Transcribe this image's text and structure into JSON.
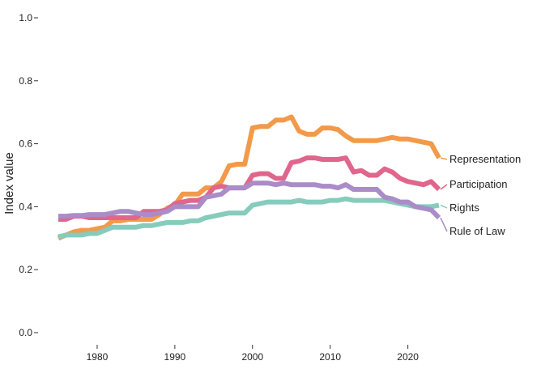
{
  "chart_data": {
    "type": "line",
    "title": "",
    "xlabel": "",
    "ylabel": "Index value",
    "xlim": [
      1975,
      2024
    ],
    "ylim": [
      0,
      1
    ],
    "x_ticks": [
      1980,
      1990,
      2000,
      2010,
      2020
    ],
    "y_ticks": [
      0.0,
      0.2,
      0.4,
      0.6,
      0.8,
      1.0
    ],
    "y_tick_labels": [
      "0.0",
      "0.2",
      "0.4",
      "0.6",
      "0.8",
      "1.0"
    ],
    "grid": false,
    "legend": "direct labels at line ends",
    "x": [
      1975,
      1976,
      1977,
      1978,
      1979,
      1980,
      1981,
      1982,
      1983,
      1984,
      1985,
      1986,
      1987,
      1988,
      1989,
      1990,
      1991,
      1992,
      1993,
      1994,
      1995,
      1996,
      1997,
      1998,
      1999,
      2000,
      2001,
      2002,
      2003,
      2004,
      2005,
      2006,
      2007,
      2008,
      2009,
      2010,
      2011,
      2012,
      2013,
      2014,
      2015,
      2016,
      2017,
      2018,
      2019,
      2020,
      2021,
      2022,
      2023,
      2024
    ],
    "series": [
      {
        "name": "Representation",
        "color": "#F29A4A",
        "values": [
          0.3,
          0.31,
          0.32,
          0.325,
          0.325,
          0.33,
          0.335,
          0.355,
          0.355,
          0.36,
          0.36,
          0.36,
          0.36,
          0.375,
          0.395,
          0.405,
          0.44,
          0.44,
          0.44,
          0.46,
          0.46,
          0.48,
          0.53,
          0.535,
          0.535,
          0.65,
          0.655,
          0.655,
          0.675,
          0.675,
          0.685,
          0.64,
          0.63,
          0.63,
          0.65,
          0.65,
          0.645,
          0.625,
          0.61,
          0.61,
          0.61,
          0.61,
          0.615,
          0.62,
          0.615,
          0.615,
          0.61,
          0.605,
          0.6,
          0.555
        ]
      },
      {
        "name": "Participation",
        "color": "#E0668C",
        "values": [
          0.36,
          0.36,
          0.37,
          0.37,
          0.365,
          0.365,
          0.365,
          0.365,
          0.365,
          0.365,
          0.365,
          0.385,
          0.385,
          0.385,
          0.39,
          0.41,
          0.415,
          0.42,
          0.42,
          0.43,
          0.46,
          0.465,
          0.46,
          0.46,
          0.46,
          0.5,
          0.505,
          0.505,
          0.49,
          0.49,
          0.54,
          0.545,
          0.555,
          0.555,
          0.55,
          0.55,
          0.55,
          0.555,
          0.51,
          0.515,
          0.5,
          0.5,
          0.52,
          0.51,
          0.49,
          0.48,
          0.475,
          0.47,
          0.48,
          0.455
        ]
      },
      {
        "name": "Rights",
        "color": "#86CBBC",
        "values": [
          0.305,
          0.31,
          0.31,
          0.31,
          0.315,
          0.315,
          0.325,
          0.335,
          0.335,
          0.335,
          0.335,
          0.34,
          0.34,
          0.345,
          0.35,
          0.35,
          0.35,
          0.355,
          0.355,
          0.365,
          0.37,
          0.375,
          0.38,
          0.38,
          0.38,
          0.405,
          0.41,
          0.415,
          0.415,
          0.415,
          0.415,
          0.42,
          0.415,
          0.415,
          0.415,
          0.42,
          0.42,
          0.425,
          0.42,
          0.42,
          0.42,
          0.42,
          0.42,
          0.415,
          0.41,
          0.405,
          0.4,
          0.4,
          0.4,
          0.405
        ]
      },
      {
        "name": "Rule of Law",
        "color": "#A98CC8",
        "values": [
          0.37,
          0.37,
          0.372,
          0.372,
          0.375,
          0.375,
          0.375,
          0.38,
          0.385,
          0.385,
          0.38,
          0.375,
          0.375,
          0.38,
          0.385,
          0.4,
          0.4,
          0.4,
          0.4,
          0.43,
          0.435,
          0.44,
          0.46,
          0.46,
          0.46,
          0.475,
          0.475,
          0.475,
          0.47,
          0.475,
          0.47,
          0.47,
          0.47,
          0.47,
          0.465,
          0.465,
          0.46,
          0.47,
          0.455,
          0.455,
          0.455,
          0.455,
          0.43,
          0.425,
          0.415,
          0.415,
          0.4,
          0.395,
          0.39,
          0.365
        ]
      }
    ]
  }
}
